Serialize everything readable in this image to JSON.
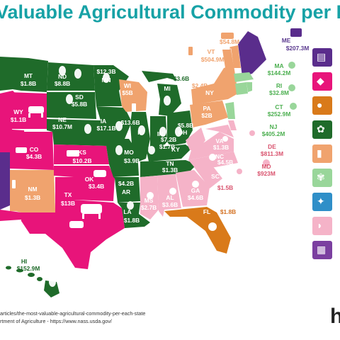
{
  "title": "Valuable Agricultural Commodity per E",
  "colors": {
    "cattle": "#e8147a",
    "corn": "#1f6b2a",
    "dairy": "#f0a36e",
    "poultry": "#f5b3c8",
    "greenhouse": "#99d69a",
    "oranges": "#d97a1a",
    "potatoes": "#5a2d8c"
  },
  "states": [
    {
      "abbr": "MT",
      "value": "$1.8B"
    },
    {
      "abbr": "ND",
      "value": "$8.8B"
    },
    {
      "abbr": "MN",
      "value": "$12.3B"
    },
    {
      "abbr": "WI",
      "value": "$5B"
    },
    {
      "abbr": "MI",
      "value": "$3.6B"
    },
    {
      "abbr": "SD",
      "value": "$5.8B"
    },
    {
      "abbr": "WY",
      "value": "$1.1B"
    },
    {
      "abbr": "NE",
      "value": "$10.7M"
    },
    {
      "abbr": "IA",
      "value": "$17.1B"
    },
    {
      "abbr": "IL",
      "value": "$13.6B"
    },
    {
      "abbr": "IN",
      "value": "$7.2B"
    },
    {
      "abbr": "OH",
      "value": "$5.8B"
    },
    {
      "abbr": "CO",
      "value": "$4.3B"
    },
    {
      "abbr": "KS",
      "value": "$10.2B"
    },
    {
      "abbr": "MO",
      "value": "$3.9B"
    },
    {
      "abbr": "KY",
      "value": "$1.7B"
    },
    {
      "abbr": "TN",
      "value": "$1.3B"
    },
    {
      "abbr": "NM",
      "value": "$1.3B"
    },
    {
      "abbr": "OK",
      "value": "$3.4B"
    },
    {
      "abbr": "AR",
      "value": "$4.2B"
    },
    {
      "abbr": "TX",
      "value": "$13B"
    },
    {
      "abbr": "MS",
      "value": "$2.7B"
    },
    {
      "abbr": "AL",
      "value": "$3.6B"
    },
    {
      "abbr": "GA",
      "value": "$4.6B"
    },
    {
      "abbr": "LA",
      "value": "$1.8B"
    },
    {
      "abbr": "FL",
      "value": "$1.8B"
    },
    {
      "abbr": "VT",
      "value": "$504.9M"
    },
    {
      "abbr": "NH",
      "value": "$54.8M"
    },
    {
      "abbr": "ME",
      "value": "$207.3M"
    },
    {
      "abbr": "NY",
      "value": "$2.4B"
    },
    {
      "abbr": "PA",
      "value": "$2B"
    },
    {
      "abbr": "MA",
      "value": "$144.2M"
    },
    {
      "abbr": "RI",
      "value": "$32.8M"
    },
    {
      "abbr": "CT",
      "value": "$252.9M"
    },
    {
      "abbr": "NJ",
      "value": "$405.2M"
    },
    {
      "abbr": "DE",
      "value": "$811.3M"
    },
    {
      "abbr": "MD",
      "value": "$923M"
    },
    {
      "abbr": "NC",
      "value": "$4.5B"
    },
    {
      "abbr": "SC",
      "value": "$1.5B"
    },
    {
      "abbr": "VA",
      "value": "$1.3B"
    },
    {
      "abbr": "HI",
      "value": "$152.9M"
    }
  ],
  "legend": {
    "icons": [
      "potatoes-icon",
      "cattle-icon",
      "oranges-icon",
      "corn-icon",
      "dairy-icon",
      "greenhouse-icon",
      "vegetables-icon",
      "poultry-icon",
      "aquaculture-icon"
    ]
  },
  "source": {
    "line1": "articles/the-most-valuable-agricultural-commodity-per-each-state",
    "line2": "rtment of Agriculture - https://www.nass.usda.gov/"
  },
  "brand": "h"
}
